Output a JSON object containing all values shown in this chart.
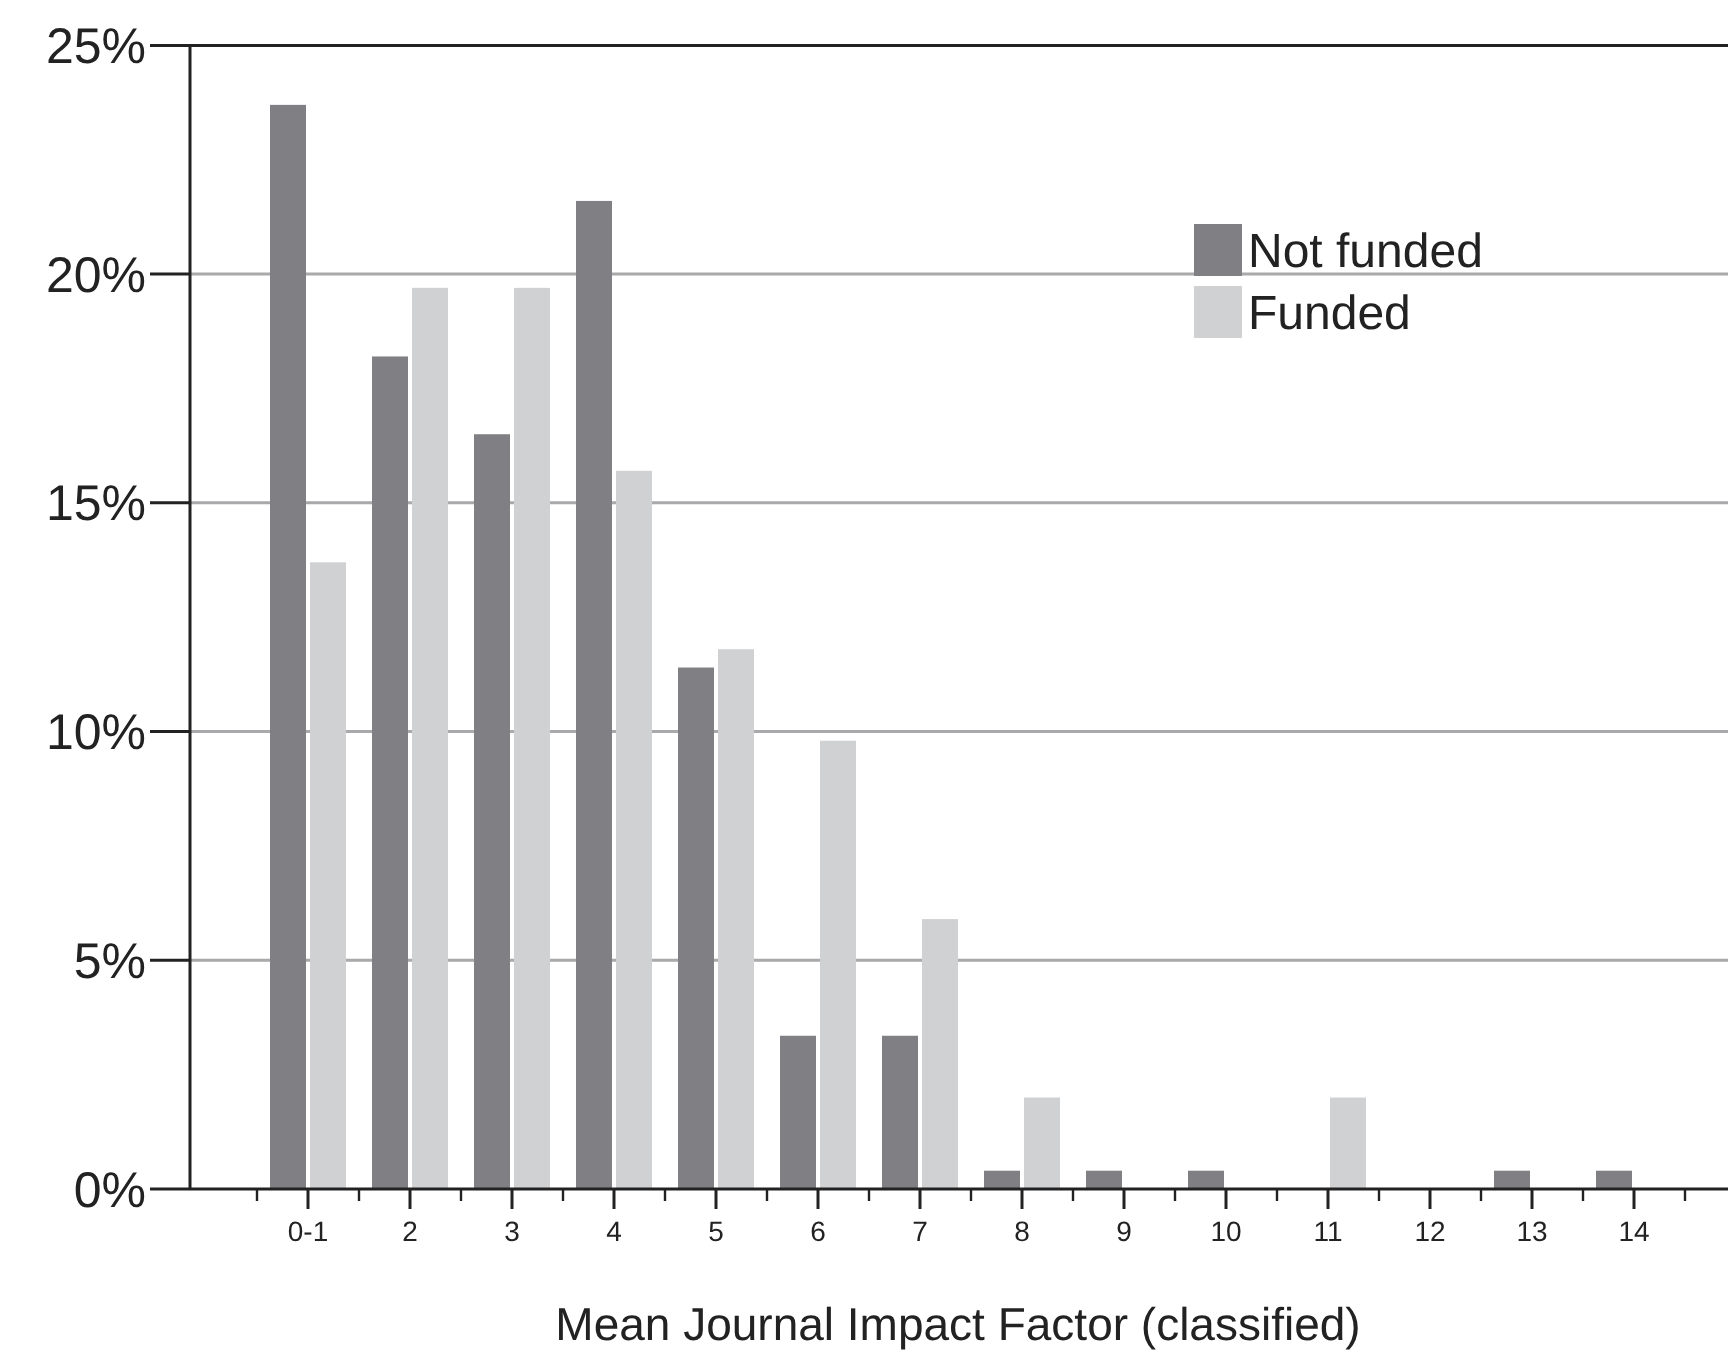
{
  "chart_data": {
    "type": "bar",
    "xlabel": "Mean Journal Impact Factor (classified)",
    "categories": [
      "0-1",
      "2",
      "3",
      "4",
      "5",
      "6",
      "7",
      "8",
      "9",
      "10",
      "11",
      "12",
      "13",
      "14"
    ],
    "series": [
      {
        "name": "Not funded",
        "color": "#808084",
        "values": [
          23.7,
          18.2,
          16.5,
          21.6,
          11.4,
          3.35,
          3.35,
          0.4,
          0.4,
          0.4,
          0,
          0,
          0.4,
          0.4
        ]
      },
      {
        "name": "Funded",
        "color": "#d0d1d3",
        "values": [
          13.7,
          19.7,
          19.7,
          15.7,
          11.8,
          9.8,
          5.9,
          2.0,
          0,
          0,
          2.0,
          0,
          0,
          0
        ]
      }
    ],
    "ylim": [
      0,
      25
    ],
    "yticks": [
      {
        "value": 0,
        "label": "0%"
      },
      {
        "value": 5,
        "label": "5%"
      },
      {
        "value": 10,
        "label": "10%"
      },
      {
        "value": 15,
        "label": "15%"
      },
      {
        "value": 20,
        "label": "20%"
      },
      {
        "value": 25,
        "label": "25%"
      }
    ],
    "grid": "y",
    "legend": "top right"
  }
}
